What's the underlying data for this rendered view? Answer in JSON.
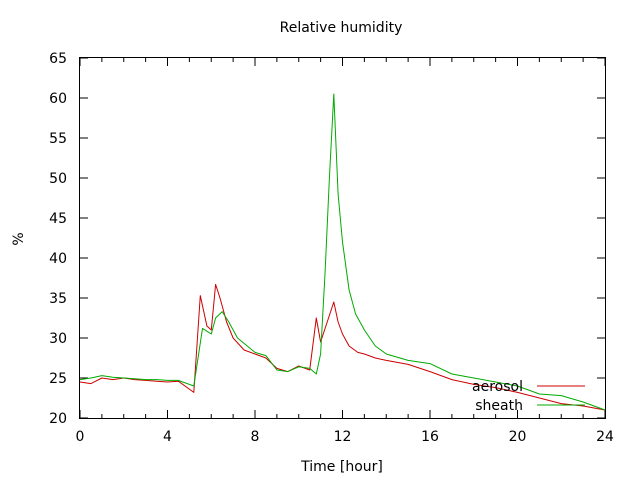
{
  "chart_data": {
    "type": "line",
    "title": "Relative humidity",
    "xlabel": "Time [hour]",
    "ylabel": "%",
    "xlim": [
      0,
      24
    ],
    "ylim": [
      20,
      65
    ],
    "x_ticks": [
      0,
      4,
      8,
      12,
      16,
      20,
      24
    ],
    "y_ticks": [
      20,
      25,
      30,
      35,
      40,
      45,
      50,
      55,
      60,
      65
    ],
    "grid": false,
    "legend_position": "bottom-right",
    "series": [
      {
        "name": "aerosol",
        "color": "#cc0000",
        "x": [
          0,
          0.5,
          1,
          1.5,
          2,
          2.5,
          3,
          3.5,
          4,
          4.5,
          5.2,
          5.5,
          5.8,
          6.0,
          6.2,
          6.4,
          6.7,
          7.0,
          7.5,
          8,
          8.5,
          9,
          9.5,
          10,
          10.5,
          10.8,
          11.0,
          11.3,
          11.6,
          11.8,
          12.0,
          12.3,
          12.7,
          13,
          13.5,
          14,
          15,
          16,
          17,
          18,
          19,
          20,
          21,
          22,
          23,
          24
        ],
        "values": [
          24.5,
          24.3,
          25.0,
          24.8,
          25.0,
          24.8,
          24.7,
          24.6,
          24.5,
          24.6,
          23.2,
          35.3,
          31.5,
          31.0,
          36.7,
          35.0,
          32.0,
          30.0,
          28.5,
          28.0,
          27.5,
          26.2,
          25.8,
          26.5,
          26.0,
          32.5,
          29.5,
          32.0,
          34.5,
          32.0,
          30.5,
          29.0,
          28.2,
          28.0,
          27.5,
          27.2,
          26.7,
          25.8,
          24.8,
          24.2,
          23.8,
          23.2,
          22.5,
          21.8,
          21.5,
          21.0
        ]
      },
      {
        "name": "sheath",
        "color": "#00aa00",
        "x": [
          0,
          0.5,
          1,
          1.5,
          2,
          2.5,
          3,
          3.5,
          4,
          4.5,
          5.2,
          5.6,
          6.0,
          6.2,
          6.5,
          6.8,
          7.2,
          8,
          8.5,
          9,
          9.5,
          10,
          10.5,
          10.8,
          11.0,
          11.2,
          11.4,
          11.6,
          11.8,
          12.0,
          12.3,
          12.6,
          13,
          13.5,
          14,
          15,
          16,
          17,
          18,
          19,
          20,
          21,
          22,
          23,
          24
        ],
        "values": [
          24.8,
          25.0,
          25.3,
          25.1,
          25.0,
          24.9,
          24.8,
          24.8,
          24.7,
          24.7,
          24.0,
          31.2,
          30.5,
          32.5,
          33.3,
          32.0,
          30.0,
          28.2,
          27.8,
          26.0,
          25.8,
          26.4,
          26.2,
          25.5,
          28.0,
          38.0,
          50.0,
          60.5,
          48.0,
          42.0,
          36.0,
          33.0,
          31.0,
          29.0,
          28.0,
          27.2,
          26.8,
          25.5,
          25.0,
          24.5,
          24.0,
          23.0,
          22.8,
          22.0,
          21.0
        ]
      }
    ]
  }
}
